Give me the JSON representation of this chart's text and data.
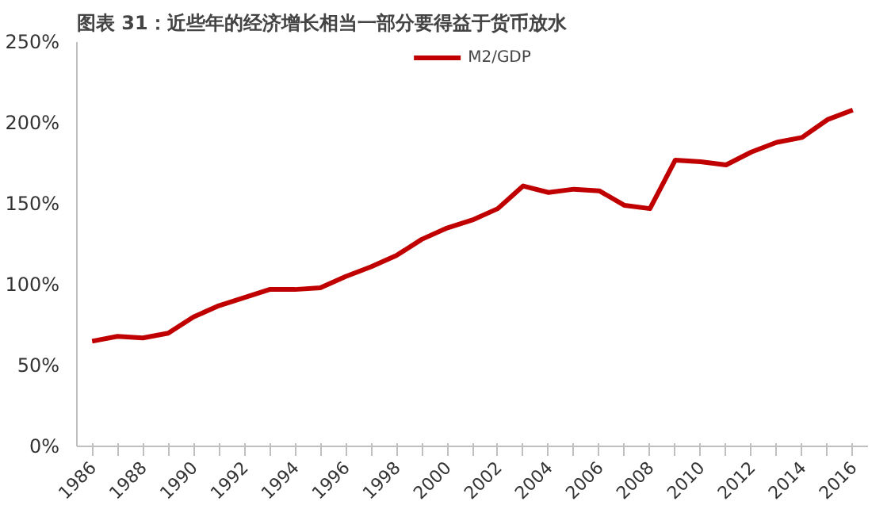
{
  "chart_data": {
    "type": "line",
    "title": "图表 31：近些年的经济增长相当一部分要得益于货币放水",
    "categories": [
      "1986",
      null,
      "1988",
      null,
      "1990",
      null,
      "1992",
      null,
      "1994",
      null,
      "1996",
      null,
      "1998",
      null,
      "2000",
      null,
      "2002",
      null,
      "2004",
      null,
      "2006",
      null,
      "2008",
      null,
      "2010",
      null,
      "2012",
      null,
      "2014",
      null,
      "2016"
    ],
    "series": [
      {
        "name": "M2/GDP",
        "color": "#c00000",
        "values": [
          65,
          68,
          67,
          70,
          80,
          87,
          92,
          97,
          97,
          98,
          105,
          111,
          118,
          128,
          135,
          140,
          147,
          161,
          157,
          159,
          158,
          149,
          147,
          177,
          176,
          174,
          182,
          188,
          191,
          202,
          208
        ]
      }
    ],
    "ylim": [
      0,
      250
    ],
    "yticks": [
      {
        "value": 0,
        "label": "0%"
      },
      {
        "value": 50,
        "label": "50%"
      },
      {
        "value": 100,
        "label": "100%"
      },
      {
        "value": 150,
        "label": "150%"
      },
      {
        "value": 200,
        "label": "200%"
      },
      {
        "value": 250,
        "label": "250%"
      }
    ],
    "grid": false,
    "legend": "top",
    "marker": "none",
    "line_style": "solid"
  }
}
